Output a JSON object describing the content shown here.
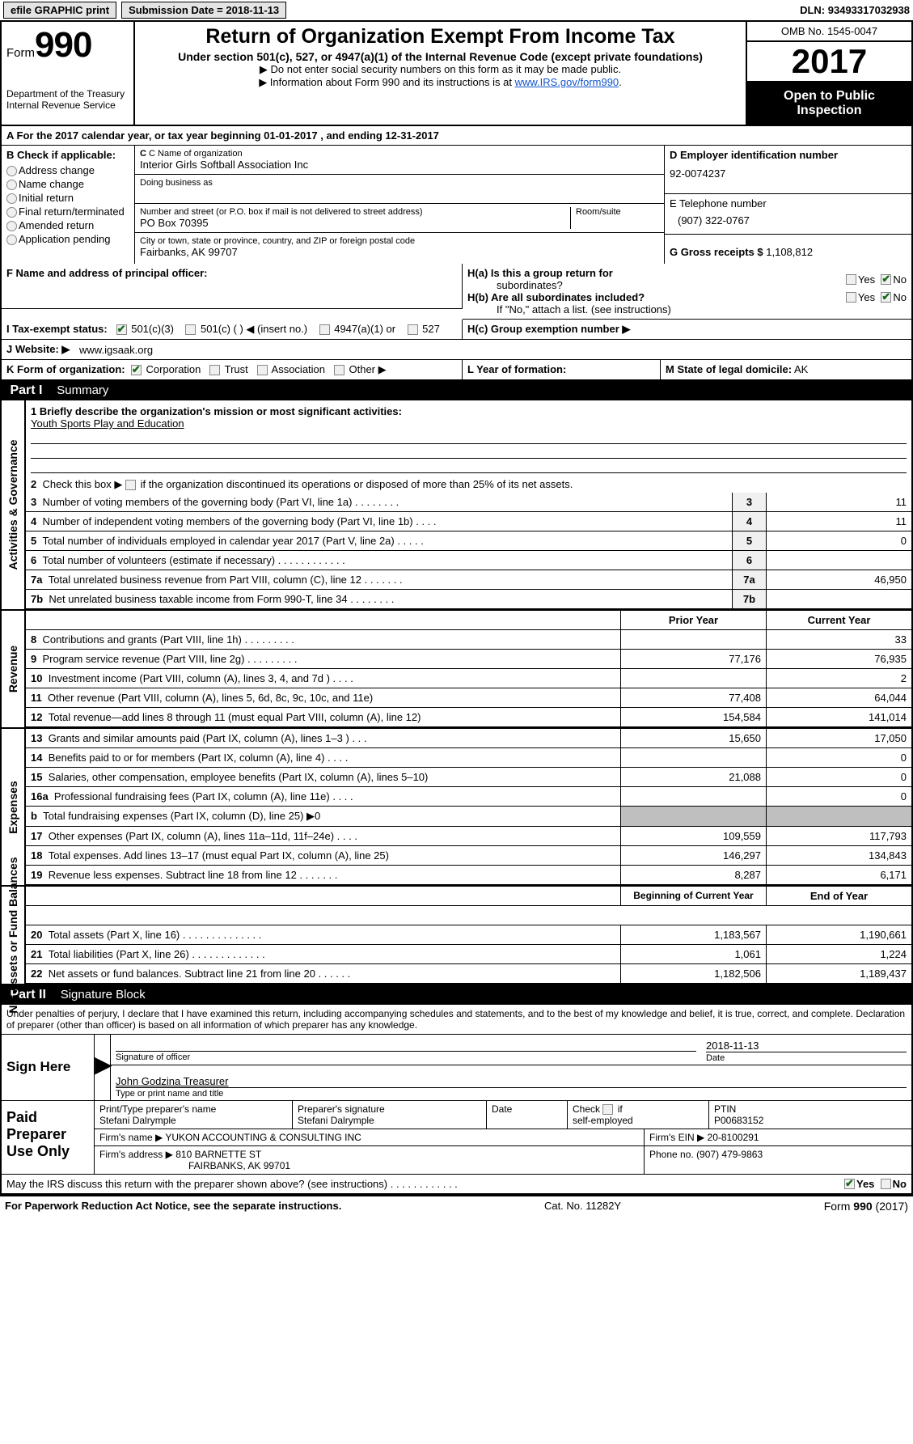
{
  "topbar": {
    "efile_btn": "efile GRAPHIC print",
    "sub_label": "Submission Date =",
    "sub_date": "2018-11-13",
    "dln_label": "DLN:",
    "dln": "93493317032938"
  },
  "header": {
    "form_prefix": "Form",
    "form_no": "990",
    "dept1": "Department of the Treasury",
    "dept2": "Internal Revenue Service",
    "title": "Return of Organization Exempt From Income Tax",
    "sub": "Under section 501(c), 527, or 4947(a)(1) of the Internal Revenue Code (except private foundations)",
    "note1": "▶ Do not enter social security numbers on this form as it may be made public.",
    "note2_pre": "▶ Information about Form 990 and its instructions is at ",
    "note2_link": "www.IRS.gov/form990",
    "omb": "OMB No. 1545-0047",
    "year": "2017",
    "open1": "Open to Public",
    "open2": "Inspection"
  },
  "sectionA": {
    "A": "A  For the 2017 calendar year, or tax year beginning 01-01-2017   , and ending 12-31-2017",
    "B_label": "B Check if applicable:",
    "B_items": [
      "Address change",
      "Name change",
      "Initial return",
      "Final return/terminated",
      "Amended return",
      "Application pending"
    ],
    "C_name_label": "C Name of organization",
    "C_name": "Interior Girls Softball Association Inc",
    "C_dba_label": "Doing business as",
    "C_addr_label": "Number and street (or P.O. box if mail is not delivered to street address)",
    "C_room": "Room/suite",
    "C_addr": "PO Box 70395",
    "C_city_label": "City or town, state or province, country, and ZIP or foreign postal code",
    "C_city": "Fairbanks, AK  99707",
    "D_label": "D Employer identification number",
    "D_val": "92-0074237",
    "E_label": "E Telephone number",
    "E_val": "(907) 322-0767",
    "G_label": "G Gross receipts $",
    "G_val": "1,108,812",
    "F_label": "F  Name and address of principal officer:",
    "Ha_label": "H(a)  Is this a group return for",
    "Ha_sub": "subordinates?",
    "Hb_label": "H(b)  Are all subordinates included?",
    "Hb_note": "If \"No,\" attach a list. (see instructions)",
    "Hc_label": "H(c)  Group exemption number ▶",
    "yes": "Yes",
    "no": "No",
    "I_label": "I  Tax-exempt status:",
    "I_opts": [
      "501(c)(3)",
      "501(c) (   ) ◀ (insert no.)",
      "4947(a)(1) or",
      "527"
    ],
    "J_label": "J  Website: ▶",
    "J_val": "www.igsaak.org",
    "K_label": "K Form of organization:",
    "K_opts": [
      "Corporation",
      "Trust",
      "Association",
      "Other ▶"
    ],
    "L_label": "L Year of formation:",
    "M_label": "M State of legal domicile:",
    "M_val": "AK"
  },
  "part1": {
    "header": "Part I",
    "sub": "Summary",
    "side_gov": "Activities & Governance",
    "side_rev": "Revenue",
    "side_exp": "Expenses",
    "side_net": "Net Assets or Fund Balances",
    "l1": "1 Briefly describe the organization's mission or most significant activities:",
    "l1v": "Youth Sports Play and Education",
    "l2": "2  Check this box ▶         if the organization discontinued its operations or disposed of more than 25% of its net assets.",
    "rows_gov": [
      {
        "n": "3",
        "t": "Number of voting members of the governing body (Part VI, line 1a)  .  .  .  .  .  .  .  .",
        "v": "11"
      },
      {
        "n": "4",
        "t": "Number of independent voting members of the governing body (Part VI, line 1b)  .  .  .  .",
        "v": "11"
      },
      {
        "n": "5",
        "t": "Total number of individuals employed in calendar year 2017 (Part V, line 2a)  .  .  .  .  .",
        "v": "0"
      },
      {
        "n": "6",
        "t": "Total number of volunteers (estimate if necessary)  .  .  .  .  .  .  .  .  .  .  .  .",
        "v": ""
      },
      {
        "n": "7a",
        "t": "Total unrelated business revenue from Part VIII, column (C), line 12  .  .  .  .  .  .  .",
        "v": "46,950"
      },
      {
        "n": "7b",
        "t": "Net unrelated business taxable income from Form 990-T, line 34  .  .  .  .  .  .  .  .",
        "v": ""
      }
    ],
    "h_prior": "Prior Year",
    "h_curr": "Current Year",
    "rows_rev": [
      {
        "n": "8",
        "t": "Contributions and grants (Part VIII, line 1h)  .  .  .  .  .  .  .  .  .",
        "p": "",
        "c": "33"
      },
      {
        "n": "9",
        "t": "Program service revenue (Part VIII, line 2g)  .  .  .  .  .  .  .  .  .",
        "p": "77,176",
        "c": "76,935"
      },
      {
        "n": "10",
        "t": "Investment income (Part VIII, column (A), lines 3, 4, and 7d )  .  .  .  .",
        "p": "",
        "c": "2"
      },
      {
        "n": "11",
        "t": "Other revenue (Part VIII, column (A), lines 5, 6d, 8c, 9c, 10c, and 11e)",
        "p": "77,408",
        "c": "64,044"
      },
      {
        "n": "12",
        "t": "Total revenue—add lines 8 through 11 (must equal Part VIII, column (A), line 12)",
        "p": "154,584",
        "c": "141,014"
      }
    ],
    "rows_exp": [
      {
        "n": "13",
        "t": "Grants and similar amounts paid (Part IX, column (A), lines 1–3 )  .  .  .",
        "p": "15,650",
        "c": "17,050"
      },
      {
        "n": "14",
        "t": "Benefits paid to or for members (Part IX, column (A), line 4)  .  .  .  .",
        "p": "",
        "c": "0"
      },
      {
        "n": "15",
        "t": "Salaries, other compensation, employee benefits (Part IX, column (A), lines 5–10)",
        "p": "21,088",
        "c": "0"
      },
      {
        "n": "16a",
        "t": "Professional fundraising fees (Part IX, column (A), line 11e)  .  .  .  .",
        "p": "",
        "c": "0"
      },
      {
        "n": "b",
        "t": "Total fundraising expenses (Part IX, column (D), line 25) ▶0",
        "p": "shade",
        "c": "shade"
      },
      {
        "n": "17",
        "t": "Other expenses (Part IX, column (A), lines 11a–11d, 11f–24e)  .  .  .  .",
        "p": "109,559",
        "c": "117,793"
      },
      {
        "n": "18",
        "t": "Total expenses. Add lines 13–17 (must equal Part IX, column (A), line 25)",
        "p": "146,297",
        "c": "134,843"
      },
      {
        "n": "19",
        "t": "Revenue less expenses. Subtract line 18 from line 12  .  .  .  .  .  .  .",
        "p": "8,287",
        "c": "6,171"
      }
    ],
    "h_beg": "Beginning of Current Year",
    "h_end": "End of Year",
    "rows_net": [
      {
        "n": "20",
        "t": "Total assets (Part X, line 16)  .  .  .  .  .  .  .  .  .  .  .  .  .  .",
        "p": "1,183,567",
        "c": "1,190,661"
      },
      {
        "n": "21",
        "t": "Total liabilities (Part X, line 26)  .  .  .  .  .  .  .  .  .  .  .  .  .",
        "p": "1,061",
        "c": "1,224"
      },
      {
        "n": "22",
        "t": "Net assets or fund balances. Subtract line 21 from line 20 .  .  .  .  .  .",
        "p": "1,182,506",
        "c": "1,189,437"
      }
    ]
  },
  "part2": {
    "header": "Part II",
    "sub": "Signature Block",
    "perjury": "Under penalties of perjury, I declare that I have examined this return, including accompanying schedules and statements, and to the best of my knowledge and belief, it is true, correct, and complete. Declaration of preparer (other than officer) is based on all information of which preparer has any knowledge.",
    "sign_here": "Sign Here",
    "sig_officer": "Signature of officer",
    "sig_date": "Date",
    "sig_date_val": "2018-11-13",
    "sig_name": "John Godzina Treasurer",
    "sig_name_cap": "Type or print name and title",
    "paid": "Paid Preparer Use Only",
    "pp_name_l": "Print/Type preparer's name",
    "pp_name": "Stefani Dalrymple",
    "pp_sig_l": "Preparer's signature",
    "pp_sig": "Stefani Dalrymple",
    "pp_date_l": "Date",
    "pp_check_l": "Check        if self-employed",
    "pp_ptin_l": "PTIN",
    "pp_ptin": "P00683152",
    "firm_name_l": "Firm's name     ▶",
    "firm_name": "YUKON ACCOUNTING & CONSULTING INC",
    "firm_ein_l": "Firm's EIN ▶",
    "firm_ein": "20-8100291",
    "firm_addr_l": "Firm's address ▶",
    "firm_addr1": "810 BARNETTE ST",
    "firm_addr2": "FAIRBANKS, AK  99701",
    "phone_l": "Phone no.",
    "phone": "(907) 479-9863",
    "discuss": "May the IRS discuss this return with the preparer shown above? (see instructions)  .  .  .  .  .  .  .  .  .  .  .  ."
  },
  "footer": {
    "left": "For Paperwork Reduction Act Notice, see the separate instructions.",
    "mid": "Cat. No. 11282Y",
    "right": "Form 990 (2017)"
  }
}
